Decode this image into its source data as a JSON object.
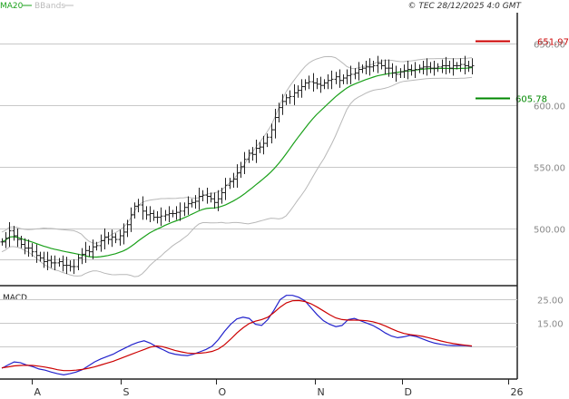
{
  "legend": {
    "ma": "MA20",
    "ma_color": "#1aa01a",
    "bb": "BBands",
    "bb_color": "#bbbbbb"
  },
  "copyright": "© TEC 28/12/2025 4:0 GMT",
  "indicator_label": "MACD",
  "colors": {
    "price": "#222222",
    "ma": "#1aa01a",
    "bbands": "#b8b8b8",
    "grid": "#c8c8c8",
    "resistance": "#cc0000",
    "support": "#008800",
    "macd": "#2222cc",
    "signal": "#cc0000",
    "axis_text": "#888888"
  },
  "chart_data": [
    {
      "type": "ohlc",
      "title": "",
      "x_labels": [
        "A",
        "S",
        "O",
        "N",
        "D",
        "26"
      ],
      "y_ticks": [
        "650.00",
        "600.00",
        "550.00",
        "500.00"
      ],
      "y_tick_values": [
        650,
        600,
        550,
        500
      ],
      "ylim": [
        455,
        675
      ],
      "levels": [
        {
          "name": "resistance",
          "value": 651.97,
          "label": "651.97"
        },
        {
          "name": "support",
          "value": 605.78,
          "label": "605.78"
        }
      ],
      "close": [
        489,
        492,
        498,
        494,
        491,
        487,
        484,
        484,
        481,
        478,
        476,
        473,
        474,
        472,
        472,
        473,
        470,
        470,
        469,
        469,
        476,
        479,
        482,
        481,
        485,
        486,
        490,
        493,
        491,
        493,
        491,
        494,
        497,
        503,
        511,
        518,
        519,
        514,
        511,
        512,
        509,
        509,
        510,
        511,
        512,
        512,
        513,
        514,
        517,
        520,
        521,
        522,
        526,
        527,
        526,
        524,
        521,
        524,
        529,
        535,
        538,
        540,
        545,
        550,
        556,
        561,
        560,
        565,
        566,
        569,
        574,
        580,
        590,
        598,
        603,
        606,
        607,
        610,
        612,
        615,
        618,
        619,
        618,
        617,
        616,
        618,
        620,
        621,
        623,
        620,
        622,
        624,
        625,
        626,
        629,
        630,
        631,
        631,
        632,
        634,
        632,
        630,
        630,
        626,
        625,
        627,
        628,
        629,
        628,
        629,
        630,
        631,
        631,
        630,
        630,
        631,
        632,
        632,
        630,
        632,
        632,
        633,
        632,
        631,
        632
      ]
    },
    {
      "type": "line",
      "title": "MACD",
      "ylim": [
        -8,
        29
      ],
      "y_ticks": [
        "25.00",
        "15.00"
      ],
      "y_tick_values": [
        25,
        15
      ],
      "series": [
        {
          "name": "MACD",
          "values": [
            -4.2,
            -2.8,
            -1.5,
            -1.8,
            -2.8,
            -3.5,
            -4.5,
            -5.0,
            -5.8,
            -6.5,
            -7.0,
            -6.5,
            -5.8,
            -4.8,
            -3.2,
            -1.5,
            -0.2,
            0.8,
            1.8,
            3.2,
            4.5,
            5.8,
            6.8,
            7.5,
            6.5,
            5.0,
            3.8,
            2.5,
            1.8,
            1.4,
            1.2,
            1.8,
            2.8,
            3.8,
            5.2,
            8.0,
            11.5,
            14.5,
            16.8,
            17.5,
            17.0,
            14.5,
            14.0,
            16.5,
            20.5,
            25.0,
            26.8,
            26.8,
            26.0,
            24.5,
            21.5,
            18.5,
            16.0,
            14.5,
            13.5,
            14.0,
            16.5,
            17.0,
            16.0,
            15.0,
            14.0,
            12.5,
            10.8,
            9.5,
            8.8,
            9.2,
            9.8,
            9.3,
            8.3,
            7.3,
            6.5,
            6.0,
            5.6,
            5.5,
            5.5,
            5.4,
            5.2
          ]
        },
        {
          "name": "Signal",
          "values": [
            -4.0,
            -3.6,
            -3.2,
            -3.0,
            -2.9,
            -3.0,
            -3.3,
            -3.7,
            -4.2,
            -4.8,
            -5.2,
            -5.2,
            -5.0,
            -4.7,
            -4.2,
            -3.6,
            -2.8,
            -2.0,
            -1.2,
            -0.2,
            0.8,
            1.8,
            2.8,
            3.8,
            4.8,
            5.3,
            5.0,
            4.2,
            3.4,
            2.8,
            2.3,
            2.1,
            2.2,
            2.5,
            3.0,
            4.0,
            5.8,
            8.2,
            10.8,
            13.0,
            14.8,
            15.8,
            16.5,
            17.5,
            19.5,
            21.8,
            23.6,
            24.5,
            24.6,
            24.2,
            23.2,
            21.8,
            20.2,
            18.6,
            17.2,
            16.5,
            16.3,
            16.3,
            16.2,
            16.0,
            15.6,
            14.8,
            13.8,
            12.6,
            11.5,
            10.6,
            10.1,
            9.8,
            9.4,
            8.8,
            8.1,
            7.4,
            6.8,
            6.3,
            5.9,
            5.6,
            5.3
          ]
        }
      ]
    }
  ]
}
